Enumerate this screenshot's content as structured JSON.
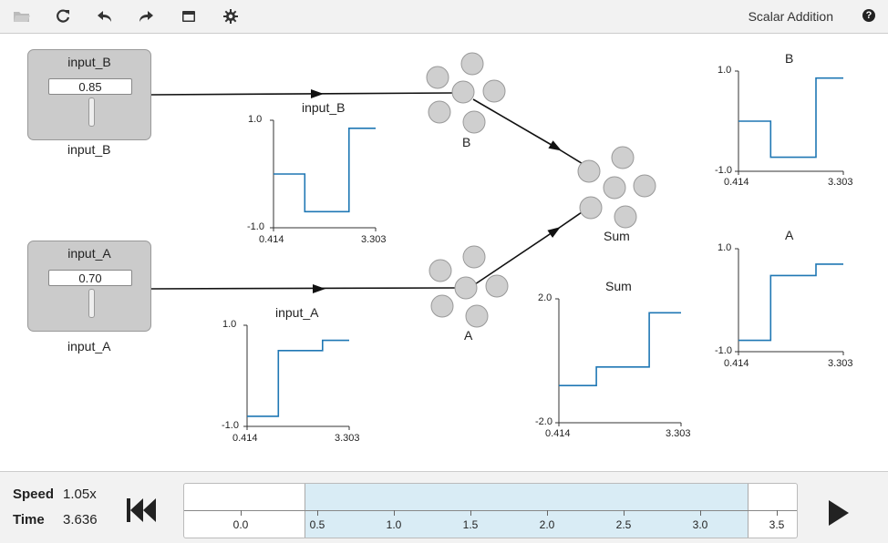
{
  "toolbar": {
    "title": "Scalar Addition",
    "help": "?",
    "icons": [
      "folder-icon",
      "refresh-icon",
      "undo-icon",
      "redo-icon",
      "console-icon",
      "gear-icon"
    ]
  },
  "sliders": {
    "input_B": {
      "title": "input_B",
      "value": "0.85",
      "label": "input_B"
    },
    "input_A": {
      "title": "input_A",
      "value": "0.70",
      "label": "input_A"
    }
  },
  "connection_labels": {
    "input_B": "input_B",
    "input_A": "input_A"
  },
  "ensembles": {
    "B": "B",
    "A": "A",
    "Sum": "Sum"
  },
  "plots": {
    "input_B": {
      "title": "input_B",
      "ymax": "1.0",
      "ymin": "-1.0",
      "xmin": "0.414",
      "xmax": "3.303"
    },
    "input_A": {
      "title": "input_A",
      "ymax": "1.0",
      "ymin": "-1.0",
      "xmin": "0.414",
      "xmax": "3.303"
    },
    "Sum": {
      "title": "Sum",
      "ymax": "2.0",
      "ymin": "-2.0",
      "xmin": "0.414",
      "xmax": "3.303"
    },
    "B": {
      "title": "B",
      "ymax": "1.0",
      "ymin": "-1.0",
      "xmin": "0.414",
      "xmax": "3.303"
    },
    "A": {
      "title": "A",
      "ymax": "1.0",
      "ymin": "-1.0",
      "xmin": "0.414",
      "xmax": "3.303"
    }
  },
  "chart_data": [
    {
      "type": "line",
      "title": "input_B",
      "ylim": [
        -1.0,
        1.0
      ],
      "xlim": [
        0.414,
        3.303
      ],
      "series": [
        {
          "x": [
            0.414,
            1.3,
            1.3,
            2.55,
            2.55,
            3.303
          ],
          "y": [
            0.0,
            0.0,
            -0.7,
            -0.7,
            0.85,
            0.85
          ]
        }
      ]
    },
    {
      "type": "line",
      "title": "input_A",
      "ylim": [
        -1.0,
        1.0
      ],
      "xlim": [
        0.414,
        3.303
      ],
      "series": [
        {
          "x": [
            0.414,
            1.3,
            1.3,
            2.55,
            2.55,
            3.303
          ],
          "y": [
            -0.8,
            -0.8,
            0.5,
            0.5,
            0.7,
            0.7
          ]
        }
      ]
    },
    {
      "type": "line",
      "title": "Sum",
      "ylim": [
        -2.0,
        2.0
      ],
      "xlim": [
        0.414,
        3.303
      ],
      "series": [
        {
          "x": [
            0.414,
            1.3,
            1.3,
            2.55,
            2.55,
            3.303
          ],
          "y": [
            -0.8,
            -0.8,
            -0.2,
            -0.2,
            1.55,
            1.55
          ]
        }
      ]
    },
    {
      "type": "line",
      "title": "B",
      "ylim": [
        -1.0,
        1.0
      ],
      "xlim": [
        0.414,
        3.303
      ],
      "series": [
        {
          "x": [
            0.414,
            1.3,
            1.3,
            2.55,
            2.55,
            3.303
          ],
          "y": [
            0.0,
            0.0,
            -0.72,
            -0.72,
            0.86,
            0.86
          ]
        }
      ]
    },
    {
      "type": "line",
      "title": "A",
      "ylim": [
        -1.0,
        1.0
      ],
      "xlim": [
        0.414,
        3.303
      ],
      "series": [
        {
          "x": [
            0.414,
            1.3,
            1.3,
            2.55,
            2.55,
            3.303
          ],
          "y": [
            -0.78,
            -0.78,
            0.48,
            0.48,
            0.7,
            0.7
          ]
        }
      ]
    }
  ],
  "bottom": {
    "speed_label": "Speed",
    "speed_value": "1.05x",
    "time_label": "Time",
    "time_value": "3.636",
    "timeline_ticks": [
      "0.0",
      "0.5",
      "1.0",
      "1.5",
      "2.0",
      "2.5",
      "3.0",
      "3.5"
    ]
  },
  "colors": {
    "trace": "#1f77b4",
    "node": "#cfcfcf",
    "slider_bg": "#cbcbcb",
    "range": "#d9ecf5"
  }
}
